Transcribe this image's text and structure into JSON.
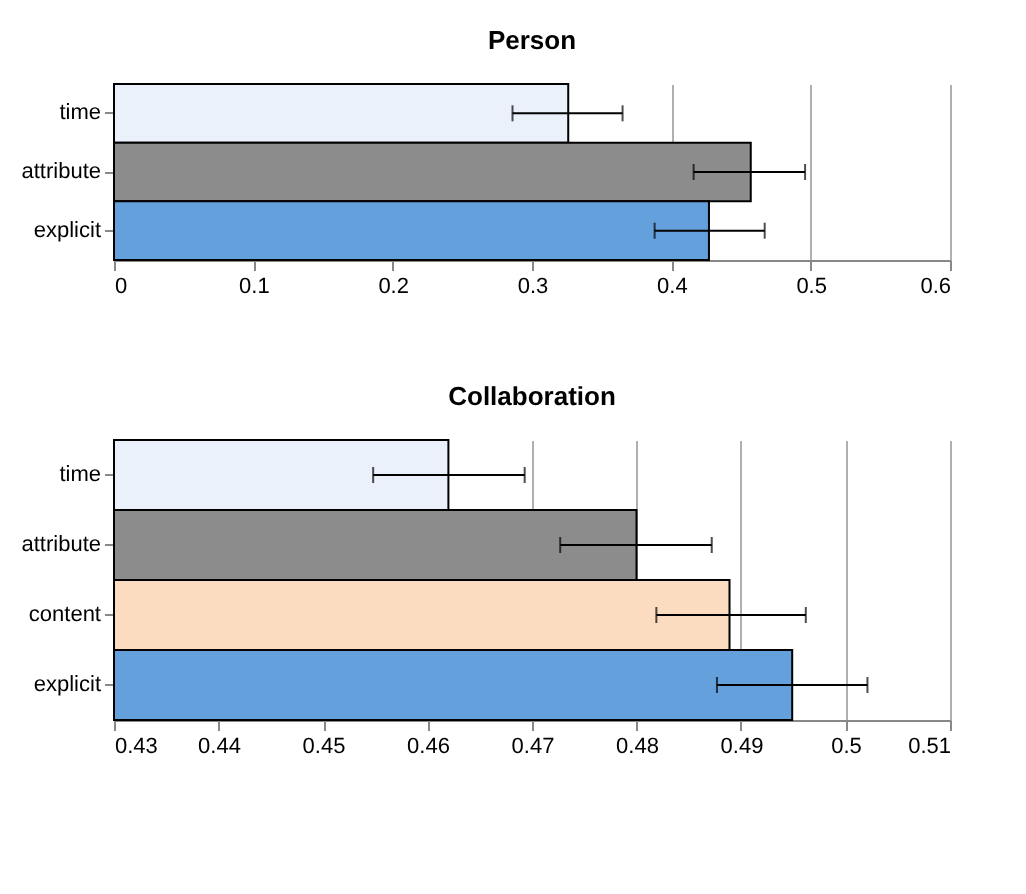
{
  "chart_data": [
    {
      "type": "bar",
      "orientation": "horizontal",
      "title": "Person",
      "categories": [
        "time",
        "attribute",
        "explicit"
      ],
      "values": [
        0.326,
        0.457,
        0.427
      ],
      "colors": [
        "#eaf1fb",
        "#8c8c8c",
        "#64a0dc"
      ],
      "errors": [
        [
          0.286,
          0.365
        ],
        [
          0.416,
          0.496
        ],
        [
          0.388,
          0.467
        ]
      ],
      "xlim": [
        0,
        0.6
      ],
      "xticks": [
        0,
        0.1,
        0.2,
        0.3,
        0.4,
        0.5,
        0.6
      ],
      "grid": "x",
      "legend": false
    },
    {
      "type": "bar",
      "orientation": "horizontal",
      "title": "Collaboration",
      "categories": [
        "time",
        "attribute",
        "content",
        "explicit"
      ],
      "values": [
        0.462,
        0.48,
        0.4889,
        0.4949
      ],
      "colors": [
        "#eaf1fb",
        "#8c8c8c",
        "#fbdcc0",
        "#64a0dc"
      ],
      "errors": [
        [
          0.4548,
          0.4693
        ],
        [
          0.4727,
          0.4872
        ],
        [
          0.4819,
          0.4962
        ],
        [
          0.4877,
          0.5021
        ]
      ],
      "xlim": [
        0.43,
        0.51
      ],
      "xticks": [
        0.43,
        0.44,
        0.45,
        0.46,
        0.47,
        0.48,
        0.49,
        0.5,
        0.51
      ],
      "grid": "x",
      "legend": false
    }
  ]
}
